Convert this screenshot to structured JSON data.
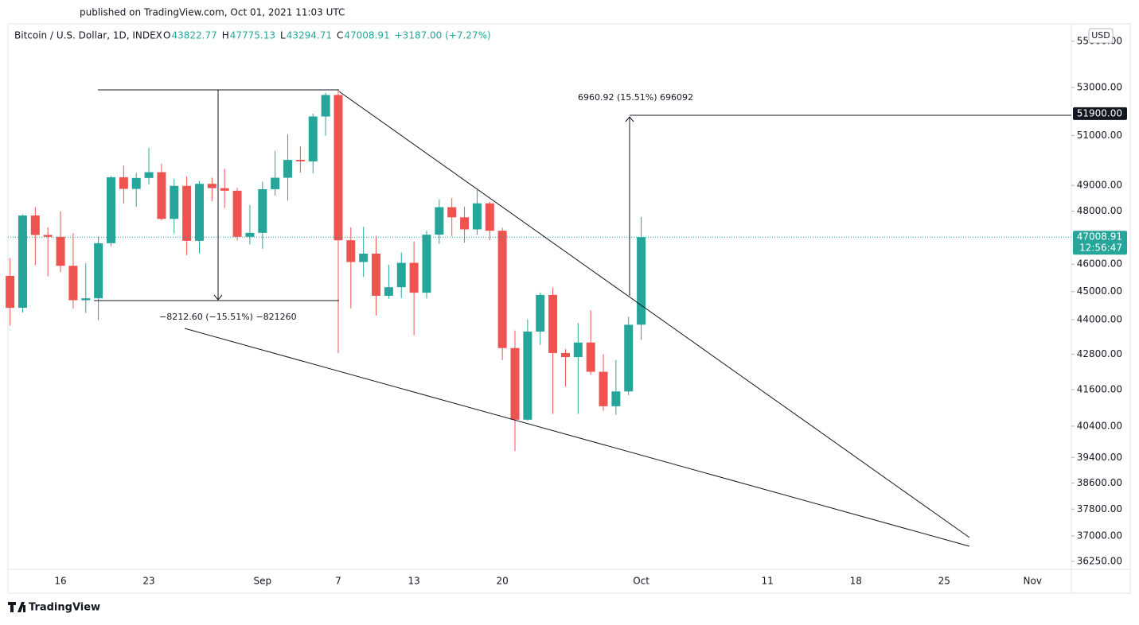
{
  "header": {
    "published": "published on TradingView.com, Oct 01, 2021 11:03 UTC",
    "symbol": "Bitcoin / U.S. Dollar, 1D, INDEX",
    "ohlc": [
      {
        "key": "O",
        "value": "43822.77"
      },
      {
        "key": "H",
        "value": "47775.13"
      },
      {
        "key": "L",
        "value": "43294.71"
      },
      {
        "key": "C",
        "value": "47008.91"
      }
    ],
    "change": "+3187.00 (+7.27%)",
    "currency": "USD"
  },
  "footer": {
    "logo_text": "TradingView"
  },
  "chart_data": {
    "type": "candlestick",
    "log_scale": true,
    "grid": false,
    "up_color": "#26a69a",
    "down_color": "#ef5350",
    "categories": [
      null,
      null,
      null,
      null,
      "16",
      null,
      null,
      null,
      null,
      null,
      null,
      "23",
      null,
      null,
      null,
      null,
      null,
      null,
      null,
      null,
      "Sep",
      null,
      null,
      null,
      null,
      null,
      "7",
      null,
      null,
      null,
      null,
      null,
      "13",
      null,
      null,
      null,
      null,
      null,
      null,
      "20",
      null,
      null,
      null,
      null,
      null,
      null,
      null,
      null,
      null,
      null,
      "Oct",
      null,
      null,
      null,
      null,
      null,
      null,
      null,
      null,
      null,
      "11",
      null,
      null,
      null,
      null,
      null,
      null,
      "18",
      null,
      null,
      null,
      null,
      null,
      null,
      "25",
      null,
      null,
      null,
      null,
      null,
      null,
      "Nov"
    ],
    "open": [
      45570,
      44420,
      47830,
      47090,
      47020,
      45940,
      44690,
      44760,
      46780,
      49320,
      48860,
      49290,
      49520,
      47700,
      48980,
      46870,
      49060,
      48890,
      48790,
      47020,
      47170,
      48850,
      49300,
      50010,
      49950,
      51780,
      52680,
      46890,
      46080,
      46390,
      44850,
      45160,
      46050,
      44960,
      47100,
      48150,
      47760,
      47300,
      48300,
      47250,
      43010,
      40610,
      43580,
      44880,
      42840,
      42700,
      43200,
      42200,
      41050,
      41540,
      43822.77,
      null,
      null,
      null,
      null,
      null,
      null,
      null,
      null,
      null,
      null,
      null,
      null,
      null,
      null,
      null,
      null,
      null,
      null,
      null,
      null,
      null,
      null,
      null,
      null,
      null,
      null,
      null,
      null,
      null,
      null,
      null
    ],
    "high": [
      46220,
      47870,
      48150,
      47380,
      47990,
      47160,
      46040,
      47030,
      49360,
      49780,
      49490,
      50500,
      49860,
      49250,
      49350,
      49170,
      49300,
      49650,
      48900,
      48230,
      49140,
      50380,
      51040,
      50560,
      51900,
      52780,
      52920,
      47380,
      47400,
      47060,
      45980,
      46440,
      46850,
      47250,
      48450,
      48500,
      48170,
      48820,
      48360,
      47360,
      43620,
      44000,
      44970,
      45150,
      42980,
      43880,
      44330,
      42800,
      42600,
      44100,
      47775.13,
      null,
      null,
      null,
      null,
      null,
      null,
      null,
      null,
      null,
      null,
      null,
      null,
      null,
      null,
      null,
      null,
      null,
      null,
      null,
      null,
      null,
      null,
      null,
      null,
      null,
      null,
      null,
      null,
      null,
      null,
      null
    ],
    "low": [
      43790,
      44250,
      45960,
      45560,
      45700,
      44390,
      44240,
      43980,
      46670,
      48290,
      48160,
      49040,
      47650,
      47140,
      46330,
      46400,
      48380,
      48120,
      46880,
      46740,
      46570,
      48600,
      48400,
      49500,
      49480,
      50990,
      42830,
      44400,
      45530,
      44150,
      44750,
      44770,
      43450,
      44760,
      46760,
      47050,
      46800,
      47100,
      46890,
      42600,
      39600,
      40580,
      43120,
      40800,
      41700,
      40800,
      42100,
      40900,
      40770,
      41420,
      43294.71,
      null,
      null,
      null,
      null,
      null,
      null,
      null,
      null,
      null,
      null,
      null,
      null,
      null,
      null,
      null,
      null,
      null,
      null,
      null,
      null,
      null,
      null,
      null,
      null,
      null,
      null,
      null,
      null,
      null,
      null,
      null
    ],
    "close": [
      44420,
      47830,
      47090,
      47020,
      45940,
      44690,
      44760,
      46780,
      49320,
      48860,
      49290,
      49520,
      47700,
      48980,
      46870,
      49060,
      48890,
      48790,
      47020,
      47170,
      48850,
      49300,
      50010,
      49950,
      51780,
      52680,
      46890,
      46080,
      46390,
      44850,
      45160,
      46050,
      44960,
      47100,
      48150,
      47760,
      47300,
      48300,
      47250,
      43010,
      40610,
      43580,
      44880,
      42840,
      42700,
      43200,
      42200,
      41050,
      41540,
      43820,
      47008.91,
      null,
      null,
      null,
      null,
      null,
      null,
      null,
      null,
      null,
      null,
      null,
      null,
      null,
      null,
      null,
      null,
      null,
      null,
      null,
      null,
      null,
      null,
      null,
      null,
      null,
      null,
      null,
      null,
      null,
      null,
      null
    ],
    "ylim": [
      36020,
      55700
    ],
    "yticks": [
      {
        "value": 55000,
        "label": "55000.00"
      },
      {
        "value": 53000,
        "label": "53000.00"
      },
      {
        "value": 51000,
        "label": "51000.00"
      },
      {
        "value": 49000,
        "label": "49000.00"
      },
      {
        "value": 48000,
        "label": "48000.00"
      },
      {
        "value": 46000,
        "label": "46000.00"
      },
      {
        "value": 45000,
        "label": "45000.00"
      },
      {
        "value": 44000,
        "label": "44000.00"
      },
      {
        "value": 42800,
        "label": "42800.00"
      },
      {
        "value": 41600,
        "label": "41600.00"
      },
      {
        "value": 40400,
        "label": "40400.00"
      },
      {
        "value": 39400,
        "label": "39400.00"
      },
      {
        "value": 38600,
        "label": "38600.00"
      },
      {
        "value": 37800,
        "label": "37800.00"
      },
      {
        "value": 37000,
        "label": "37000.00"
      },
      {
        "value": 36250,
        "label": "36250.00"
      }
    ],
    "last_price": {
      "value": 47008.91,
      "label": "47008.91",
      "countdown": "12:56:47"
    },
    "target_price": {
      "value": 51900,
      "label": "51900.00"
    },
    "annotations": [
      "−8212.60 (−15.51%) −821260",
      "6960.92 (15.51%) 696092"
    ]
  }
}
